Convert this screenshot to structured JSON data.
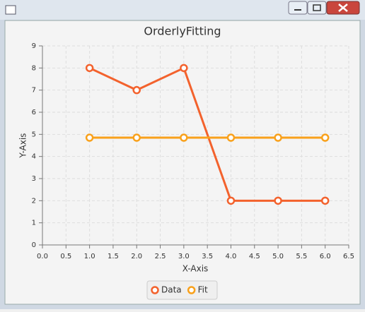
{
  "chart_data": {
    "type": "line",
    "title": "OrderlyFitting",
    "x_label": "X-Axis",
    "y_label": "Y-Axis",
    "x": [
      1.0,
      2.0,
      3.0,
      4.0,
      5.0,
      6.0
    ],
    "series": [
      {
        "name": "Data",
        "color": "#f3622d",
        "values": [
          8,
          7,
          8,
          2,
          2,
          2
        ]
      },
      {
        "name": "Fit",
        "color": "#f9a11b",
        "values": [
          4.85,
          4.85,
          4.85,
          4.85,
          4.85,
          4.85
        ]
      }
    ],
    "xlim": [
      0,
      6.5
    ],
    "xticks": [
      {
        "value": 0,
        "label": "0.0"
      },
      {
        "value": 0.5,
        "label": "0.5"
      },
      {
        "value": 1,
        "label": "1.0"
      },
      {
        "value": 1.5,
        "label": "1.5"
      },
      {
        "value": 2,
        "label": "2.0"
      },
      {
        "value": 2.5,
        "label": "2.5"
      },
      {
        "value": 3,
        "label": "3.0"
      },
      {
        "value": 3.5,
        "label": "3.5"
      },
      {
        "value": 4,
        "label": "4.0"
      },
      {
        "value": 4.5,
        "label": "4.5"
      },
      {
        "value": 5,
        "label": "5.0"
      },
      {
        "value": 5.5,
        "label": "5.5"
      },
      {
        "value": 6,
        "label": "6.0"
      },
      {
        "value": 6.5,
        "label": "6.5"
      }
    ],
    "ylim": [
      0,
      9
    ],
    "yticks": [
      0,
      1,
      2,
      3,
      4,
      5,
      6,
      7,
      8,
      9
    ],
    "grid": true
  }
}
